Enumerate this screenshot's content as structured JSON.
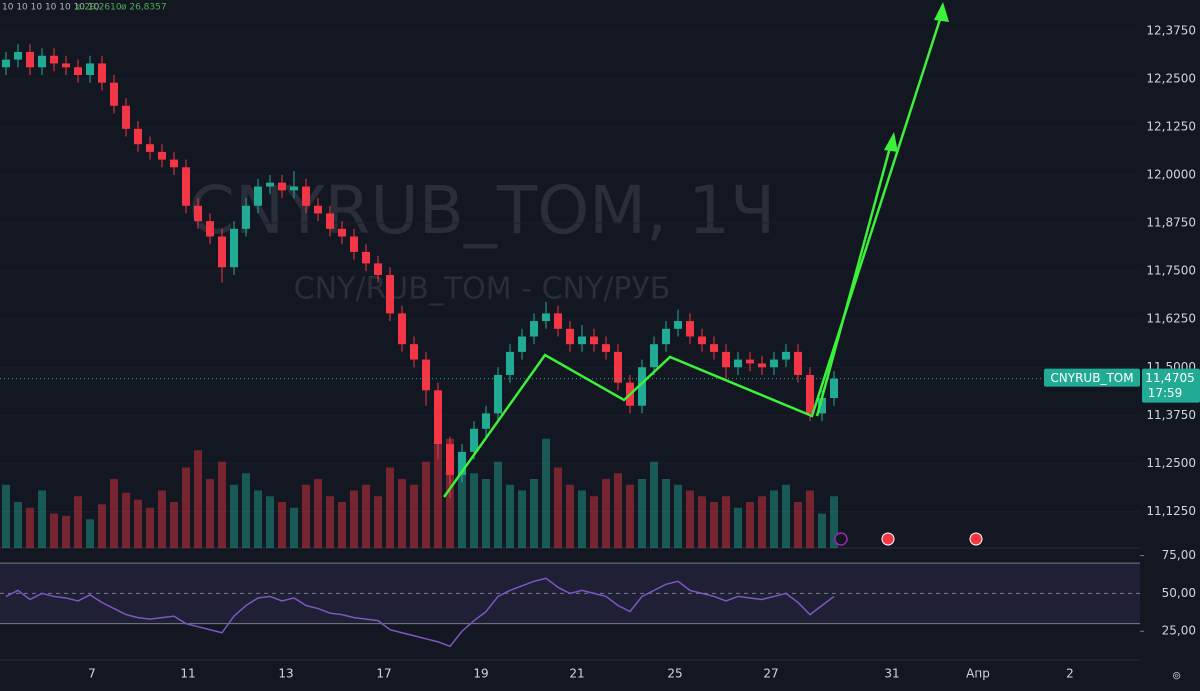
{
  "chart_data": {
    "type": "candlestick",
    "title": "CNYRUB_TOM, 1Ч",
    "subtitle": "CNY/RUB_TOM - CNY/РУБ",
    "indicator_legend": [
      "10 10 10 10 10 10 10",
      "ø 29,2610",
      "ø 26,8357"
    ],
    "x_labels": [
      "7",
      "11",
      "13",
      "17",
      "19",
      "21",
      "25",
      "27",
      "31",
      "Апр",
      "2"
    ],
    "up_color": "#22ab94",
    "down_color": "#f23645",
    "open": [
      12.28,
      12.3,
      12.32,
      12.28,
      12.31,
      12.29,
      12.28,
      12.26,
      12.29,
      12.24,
      12.18,
      12.12,
      12.08,
      12.06,
      12.04,
      12.02,
      11.92,
      11.88,
      11.84,
      11.76,
      11.86,
      11.92,
      11.97,
      11.98,
      11.96,
      11.97,
      11.92,
      11.9,
      11.86,
      11.84,
      11.8,
      11.77,
      11.74,
      11.64,
      11.56,
      11.52,
      11.44,
      11.3,
      11.22,
      11.28,
      11.34,
      11.38,
      11.48,
      11.54,
      11.58,
      11.62,
      11.64,
      11.6,
      11.56,
      11.58,
      11.56,
      11.54,
      11.46,
      11.4,
      11.5,
      11.56,
      11.6,
      11.62,
      11.58,
      11.56,
      11.54,
      11.5,
      11.52,
      11.51,
      11.5,
      11.52,
      11.54,
      11.48,
      11.38,
      11.42
    ],
    "high": [
      12.32,
      12.34,
      12.34,
      12.33,
      12.33,
      12.31,
      12.3,
      12.31,
      12.31,
      12.26,
      12.2,
      12.14,
      12.1,
      12.08,
      12.06,
      12.04,
      11.94,
      11.9,
      11.86,
      11.88,
      11.94,
      11.99,
      12.0,
      12.0,
      12.01,
      11.99,
      11.94,
      11.92,
      11.88,
      11.86,
      11.82,
      11.79,
      11.76,
      11.66,
      11.58,
      11.54,
      11.46,
      11.32,
      11.3,
      11.36,
      11.4,
      11.5,
      11.56,
      11.6,
      11.64,
      11.67,
      11.66,
      11.62,
      11.61,
      11.6,
      11.58,
      11.56,
      11.48,
      11.52,
      11.58,
      11.62,
      11.65,
      11.64,
      11.6,
      11.58,
      11.56,
      11.54,
      11.54,
      11.53,
      11.54,
      11.56,
      11.56,
      11.5,
      11.44,
      11.49
    ],
    "low": [
      12.26,
      12.28,
      12.26,
      12.26,
      12.27,
      12.26,
      12.24,
      12.24,
      12.22,
      12.16,
      12.1,
      12.06,
      12.04,
      12.02,
      12.0,
      11.9,
      11.86,
      11.82,
      11.72,
      11.74,
      11.84,
      11.9,
      11.95,
      11.94,
      11.94,
      11.9,
      11.88,
      11.84,
      11.82,
      11.78,
      11.75,
      11.72,
      11.62,
      11.54,
      11.5,
      11.4,
      11.26,
      11.16,
      11.2,
      11.26,
      11.32,
      11.36,
      11.46,
      11.52,
      11.56,
      11.6,
      11.58,
      11.54,
      11.54,
      11.54,
      11.52,
      11.44,
      11.38,
      11.38,
      11.48,
      11.54,
      11.58,
      11.56,
      11.54,
      11.52,
      11.47,
      11.48,
      11.49,
      11.48,
      11.48,
      11.5,
      11.46,
      11.36,
      11.36,
      11.4
    ],
    "close": [
      12.3,
      12.32,
      12.28,
      12.31,
      12.29,
      12.28,
      12.26,
      12.29,
      12.24,
      12.18,
      12.12,
      12.08,
      12.06,
      12.04,
      12.02,
      11.92,
      11.88,
      11.84,
      11.76,
      11.86,
      11.92,
      11.97,
      11.98,
      11.96,
      11.97,
      11.92,
      11.9,
      11.86,
      11.84,
      11.8,
      11.77,
      11.74,
      11.64,
      11.56,
      11.52,
      11.44,
      11.3,
      11.22,
      11.28,
      11.34,
      11.38,
      11.48,
      11.54,
      11.58,
      11.62,
      11.64,
      11.6,
      11.56,
      11.58,
      11.56,
      11.54,
      11.46,
      11.4,
      11.5,
      11.56,
      11.6,
      11.62,
      11.58,
      11.56,
      11.54,
      11.5,
      11.52,
      11.51,
      11.5,
      11.52,
      11.54,
      11.48,
      11.38,
      11.42,
      11.4705
    ],
    "volume": [
      55,
      40,
      35,
      50,
      30,
      28,
      45,
      25,
      38,
      60,
      48,
      42,
      35,
      50,
      40,
      70,
      85,
      60,
      75,
      55,
      65,
      50,
      45,
      40,
      35,
      55,
      60,
      45,
      40,
      50,
      55,
      45,
      70,
      60,
      55,
      75,
      90,
      95,
      70,
      65,
      60,
      75,
      55,
      50,
      60,
      95,
      70,
      55,
      50,
      45,
      60,
      65,
      55,
      60,
      75,
      60,
      55,
      50,
      45,
      40,
      45,
      35,
      40,
      45,
      50,
      55,
      40,
      50,
      30,
      45
    ],
    "volume_lim": [
      0,
      100
    ],
    "ylim": [
      11.03,
      12.455
    ],
    "yticks": [
      {
        "value": 12.375,
        "label": "12,3750"
      },
      {
        "value": 12.25,
        "label": "12,2500"
      },
      {
        "value": 12.125,
        "label": "12,1250"
      },
      {
        "value": 12.0,
        "label": "12,0000"
      },
      {
        "value": 11.875,
        "label": "11,8750"
      },
      {
        "value": 11.75,
        "label": "11,7500"
      },
      {
        "value": 11.625,
        "label": "11,6250"
      },
      {
        "value": 11.5,
        "label": "11,5000"
      },
      {
        "value": 11.375,
        "label": "11,3750"
      },
      {
        "value": 11.25,
        "label": "11,2500"
      },
      {
        "value": 11.125,
        "label": "11,1250"
      }
    ],
    "price_tag": {
      "name": "CNYRUB_TOM",
      "price": {
        "value": 11.4705,
        "label": "11,4705"
      },
      "time": "17:59"
    },
    "rsi": {
      "color": "#7e57c2",
      "ylim": [
        6,
        80
      ],
      "band": [
        30,
        70
      ],
      "yticks": [
        {
          "value": 75,
          "label": "75,00"
        },
        {
          "value": 50,
          "label": "50,00"
        },
        {
          "value": 25,
          "label": "25,00"
        }
      ],
      "values": [
        48,
        52,
        46,
        50,
        48,
        47,
        45,
        49,
        44,
        40,
        36,
        34,
        33,
        34,
        35,
        30,
        28,
        26,
        24,
        35,
        42,
        47,
        48,
        45,
        47,
        42,
        40,
        37,
        36,
        34,
        33,
        32,
        26,
        24,
        22,
        20,
        18,
        15,
        25,
        32,
        38,
        48,
        52,
        55,
        58,
        60,
        54,
        50,
        52,
        50,
        48,
        42,
        38,
        48,
        52,
        56,
        58,
        52,
        50,
        48,
        45,
        48,
        47,
        46,
        48,
        50,
        44,
        36,
        42,
        48
      ]
    }
  }
}
